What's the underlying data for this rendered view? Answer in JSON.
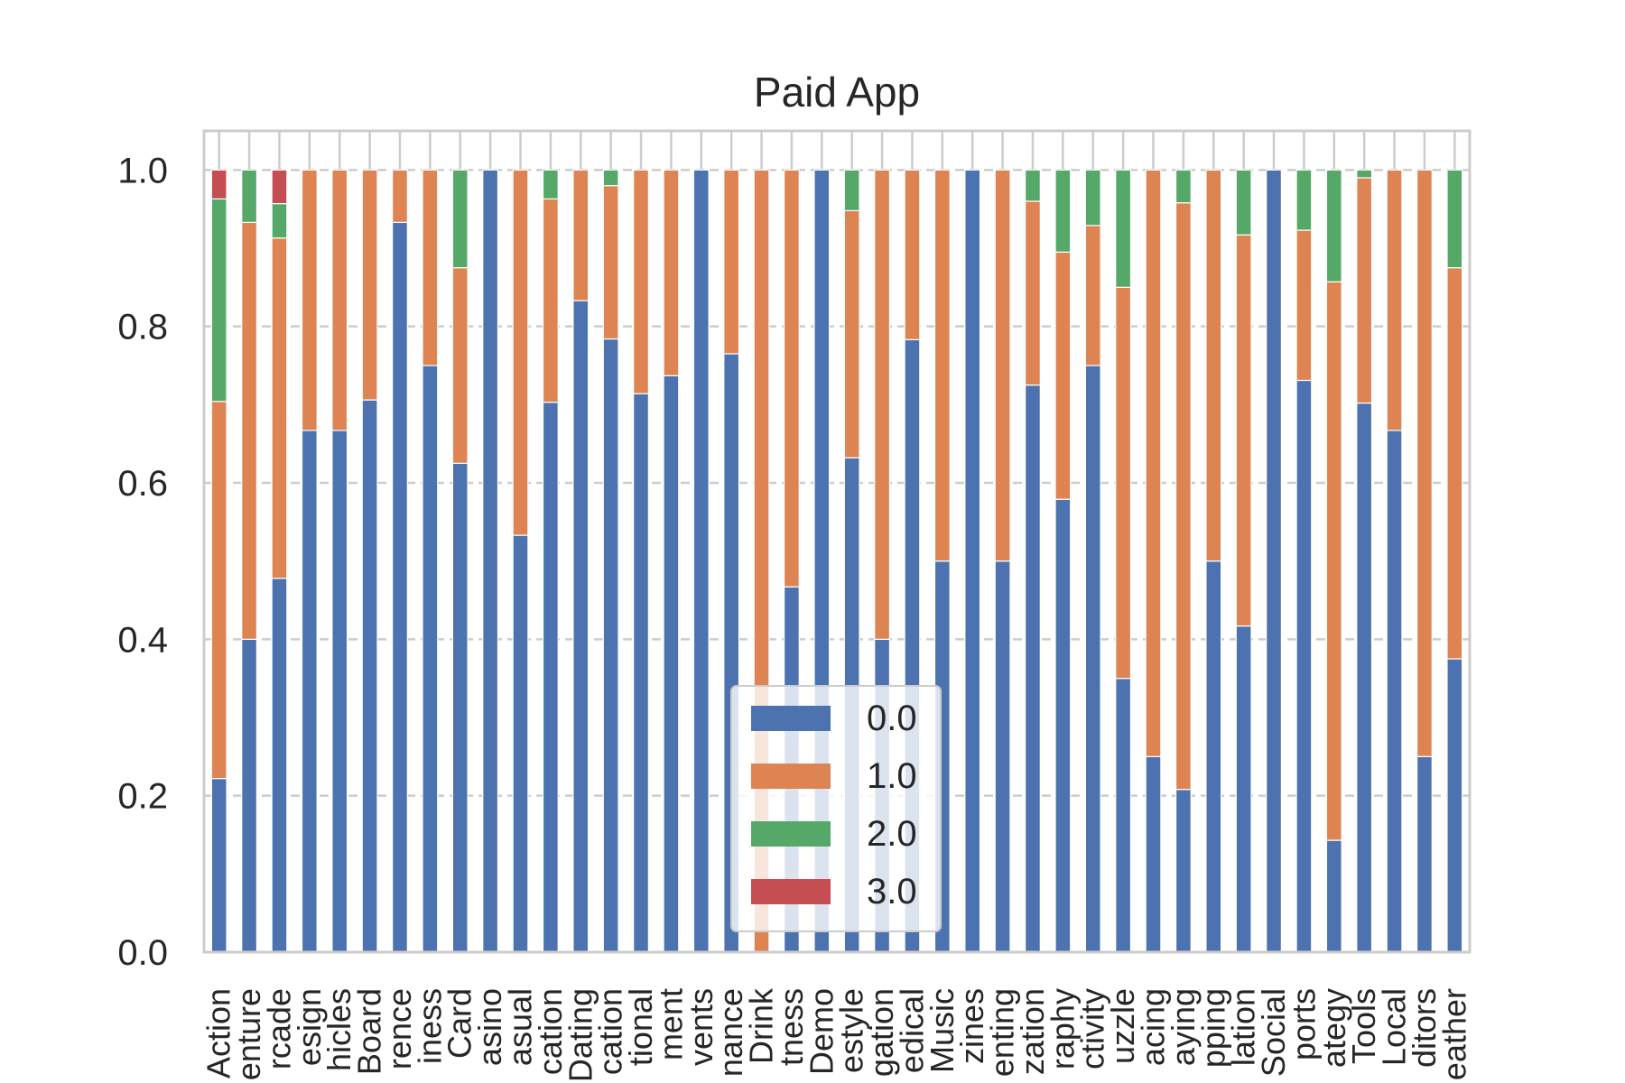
{
  "chart_data": {
    "type": "bar",
    "stacked": true,
    "title": "Paid App",
    "xlabel": "",
    "ylabel": "",
    "ylim": [
      0,
      1.05
    ],
    "yticks": [
      "0.0",
      "0.2",
      "0.4",
      "0.6",
      "0.8",
      "1.0"
    ],
    "grid": "horizontal dashed",
    "legend_position": "bottom-center",
    "categories_visible": [
      "Action",
      "enture",
      "rcade",
      "esign",
      "hicles",
      "Board",
      "rence",
      "iness",
      "Card",
      "asino",
      "asual",
      "cation",
      "Dating",
      "cation",
      "tional",
      "ment",
      "vents",
      "nance",
      "Drink",
      "tness",
      "Demo",
      "estyle",
      "gation",
      "edical",
      "Music",
      "zines",
      "enting",
      "zation",
      "raphy",
      "ctivity",
      "uzzle",
      "acing",
      "aying",
      "pping",
      "lation",
      "Social",
      "ports",
      "ategy",
      "Tools",
      "Local",
      "ditors",
      "eather"
    ],
    "series": [
      {
        "name": "0.0",
        "color": "#4c72b0",
        "values": [
          0.222,
          0.4,
          0.478,
          0.667,
          0.667,
          0.706,
          0.933,
          0.75,
          0.625,
          1.0,
          0.533,
          0.703,
          0.833,
          0.784,
          0.714,
          0.737,
          1.0,
          0.765,
          0.0,
          0.467,
          1.0,
          0.632,
          0.4,
          0.783,
          0.5,
          1.0,
          0.5,
          0.725,
          0.579,
          0.75,
          0.35,
          0.25,
          0.208,
          0.5,
          0.417,
          1.0,
          0.731,
          0.143,
          0.702,
          0.667,
          0.25,
          0.375
        ]
      },
      {
        "name": "1.0",
        "color": "#dd8452",
        "values": [
          0.482,
          0.533,
          0.435,
          0.333,
          0.333,
          0.294,
          0.067,
          0.25,
          0.25,
          0.0,
          0.467,
          0.26,
          0.167,
          0.196,
          0.286,
          0.263,
          0.0,
          0.235,
          1.0,
          0.533,
          0.0,
          0.316,
          0.6,
          0.217,
          0.5,
          0.0,
          0.5,
          0.235,
          0.316,
          0.179,
          0.5,
          0.75,
          0.75,
          0.5,
          0.5,
          0.0,
          0.192,
          0.714,
          0.288,
          0.333,
          0.75,
          0.5
        ]
      },
      {
        "name": "2.0",
        "color": "#55a868",
        "values": [
          0.259,
          0.067,
          0.044,
          0.0,
          0.0,
          0.0,
          0.0,
          0.0,
          0.125,
          0.0,
          0.0,
          0.037,
          0.0,
          0.02,
          0.0,
          0.0,
          0.0,
          0.0,
          0.0,
          0.0,
          0.0,
          0.052,
          0.0,
          0.0,
          0.0,
          0.0,
          0.0,
          0.04,
          0.105,
          0.071,
          0.15,
          0.0,
          0.042,
          0.0,
          0.083,
          0.0,
          0.077,
          0.143,
          0.01,
          0.0,
          0.0,
          0.125
        ]
      },
      {
        "name": "3.0",
        "color": "#c44e52",
        "values": [
          0.037,
          0.0,
          0.043,
          0.0,
          0.0,
          0.0,
          0.0,
          0.0,
          0.0,
          0.0,
          0.0,
          0.0,
          0.0,
          0.0,
          0.0,
          0.0,
          0.0,
          0.0,
          0.0,
          0.0,
          0.0,
          0.0,
          0.0,
          0.0,
          0.0,
          0.0,
          0.0,
          0.0,
          0.0,
          0.0,
          0.0,
          0.0,
          0.0,
          0.0,
          0.0,
          0.0,
          0.0,
          0.0,
          0.0,
          0.0,
          0.0,
          0.0
        ]
      }
    ]
  }
}
